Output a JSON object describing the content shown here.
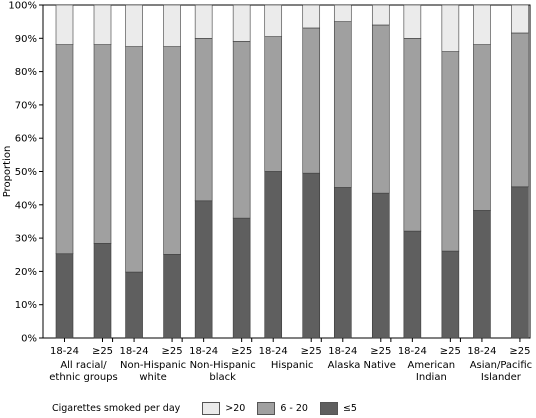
{
  "chart_data": {
    "type": "bar",
    "stacked": true,
    "ylabel": "Proportion",
    "ylim": [
      0,
      100
    ],
    "yticks": [
      "0%",
      "10%",
      "20%",
      "30%",
      "40%",
      "50%",
      "60%",
      "70%",
      "80%",
      "90%",
      "100%"
    ],
    "grid": false,
    "legend_position": "bottom",
    "groups": [
      {
        "label": "All racial/\nethnic groups",
        "bars": [
          {
            "label": "18-24",
            "values": [
              25.3,
              62.8,
              11.9
            ]
          },
          {
            "label": "≥25",
            "values": [
              28.4,
              59.7,
              11.9
            ]
          }
        ]
      },
      {
        "label": "Non-Hispanic\nwhite",
        "bars": [
          {
            "label": "18-24",
            "values": [
              19.8,
              67.7,
              12.5
            ]
          },
          {
            "label": "≥25",
            "values": [
              25.1,
              62.4,
              12.5
            ]
          }
        ]
      },
      {
        "label": "Non-Hispanic\nblack",
        "bars": [
          {
            "label": "18-24",
            "values": [
              41.2,
              48.8,
              10.0
            ]
          },
          {
            "label": "≥25",
            "values": [
              36.0,
              53.1,
              10.9
            ]
          }
        ]
      },
      {
        "label": "Hispanic",
        "bars": [
          {
            "label": "18-24",
            "values": [
              50.0,
              40.5,
              9.5
            ]
          },
          {
            "label": "≥25",
            "values": [
              49.5,
              43.6,
              6.9
            ]
          }
        ]
      },
      {
        "label": "Alaska Native",
        "bars": [
          {
            "label": "18-24",
            "values": [
              45.2,
              49.8,
              5.0
            ]
          },
          {
            "label": "≥25",
            "values": [
              43.5,
              50.5,
              6.0
            ]
          }
        ]
      },
      {
        "label": "American\nIndian",
        "bars": [
          {
            "label": "18-24",
            "values": [
              32.1,
              57.9,
              10.0
            ]
          },
          {
            "label": "≥25",
            "values": [
              26.1,
              59.9,
              14.0
            ]
          }
        ]
      },
      {
        "label": "Asian/Pacific\nIslander",
        "bars": [
          {
            "label": "18-24",
            "values": [
              38.3,
              49.8,
              11.9
            ]
          },
          {
            "label": "≥25",
            "values": [
              45.4,
              46.2,
              8.4
            ]
          }
        ]
      }
    ],
    "series": [
      {
        "name": "≤5",
        "color": "#5f5f5f"
      },
      {
        "name": "6 - 20",
        "color": "#a0a0a0"
      },
      {
        "name": ">20",
        "color": "#ebebeb"
      }
    ],
    "legend": {
      "title": "Cigarettes smoked per day",
      "items": [
        {
          "name": ">20",
          "color": "#ebebeb"
        },
        {
          "name": "6 - 20",
          "color": "#a0a0a0"
        },
        {
          "name": "≤5",
          "color": "#5f5f5f"
        }
      ]
    }
  }
}
